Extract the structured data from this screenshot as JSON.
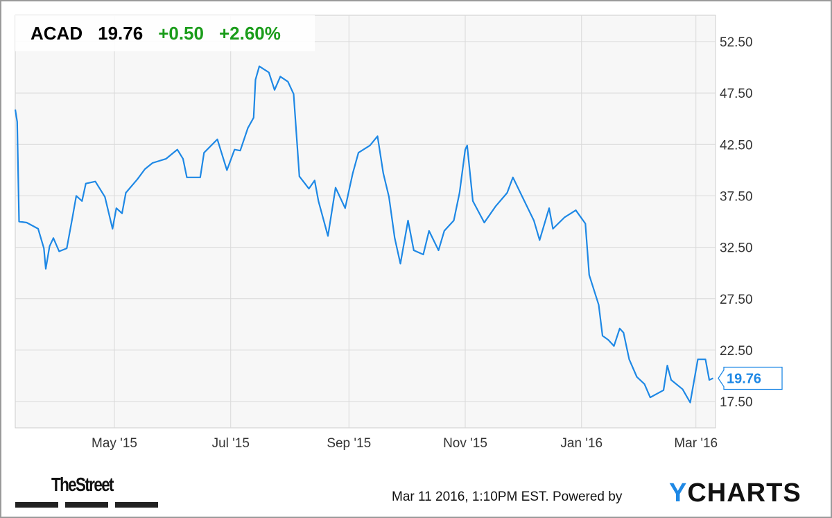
{
  "header": {
    "ticker": "ACAD",
    "price": "19.76",
    "change": "+0.50",
    "change_pct": "+2.60%"
  },
  "footer": {
    "timestamp": "Mar 11 2016, 1:10PM EST.",
    "powered_by": "Powered by",
    "brand_y": "Y",
    "brand_rest": "CHARTS",
    "publisher": "TheStreet"
  },
  "colors": {
    "line": "#1e88e5",
    "positive": "#1a9c1a",
    "grid": "#d9d9d9",
    "plot_bg": "#f7f7f7"
  },
  "chart_data": {
    "type": "line",
    "title": "",
    "xlabel": "",
    "ylabel": "",
    "ylim": [
      15,
      55
    ],
    "y_ticks": [
      "17.50",
      "22.50",
      "27.50",
      "32.50",
      "37.50",
      "42.50",
      "47.50",
      "52.50"
    ],
    "x_ticks": [
      {
        "label": "May '15",
        "date": "2015-05-01"
      },
      {
        "label": "Jul '15",
        "date": "2015-07-01"
      },
      {
        "label": "Sep '15",
        "date": "2015-09-01"
      },
      {
        "label": "Nov '15",
        "date": "2015-11-01"
      },
      {
        "label": "Jan '16",
        "date": "2016-01-01"
      },
      {
        "label": "Mar '16",
        "date": "2016-03-01"
      }
    ],
    "grid": true,
    "last_value_label": "19.76",
    "series": [
      {
        "points": [
          [
            "2015-03-10",
            45.9
          ],
          [
            "2015-03-11",
            44.7
          ],
          [
            "2015-03-12",
            35.0
          ],
          [
            "2015-03-16",
            34.9
          ],
          [
            "2015-03-22",
            34.3
          ],
          [
            "2015-03-25",
            32.4
          ],
          [
            "2015-03-26",
            30.4
          ],
          [
            "2015-03-28",
            32.6
          ],
          [
            "2015-03-30",
            33.4
          ],
          [
            "2015-04-02",
            32.1
          ],
          [
            "2015-04-06",
            32.4
          ],
          [
            "2015-04-09",
            35.4
          ],
          [
            "2015-04-11",
            37.5
          ],
          [
            "2015-04-14",
            37.0
          ],
          [
            "2015-04-16",
            38.7
          ],
          [
            "2015-04-21",
            38.9
          ],
          [
            "2015-04-26",
            37.4
          ],
          [
            "2015-04-30",
            34.3
          ],
          [
            "2015-05-02",
            36.3
          ],
          [
            "2015-05-05",
            35.8
          ],
          [
            "2015-05-07",
            37.8
          ],
          [
            "2015-05-13",
            39.1
          ],
          [
            "2015-05-17",
            40.1
          ],
          [
            "2015-05-21",
            40.7
          ],
          [
            "2015-05-28",
            41.1
          ],
          [
            "2015-06-03",
            42.0
          ],
          [
            "2015-06-06",
            41.1
          ],
          [
            "2015-06-08",
            39.3
          ],
          [
            "2015-06-15",
            39.3
          ],
          [
            "2015-06-17",
            41.7
          ],
          [
            "2015-06-24",
            43.0
          ],
          [
            "2015-06-29",
            40.0
          ],
          [
            "2015-07-03",
            42.0
          ],
          [
            "2015-07-06",
            41.9
          ],
          [
            "2015-07-10",
            44.1
          ],
          [
            "2015-07-13",
            45.1
          ],
          [
            "2015-07-14",
            48.8
          ],
          [
            "2015-07-16",
            50.1
          ],
          [
            "2015-07-21",
            49.5
          ],
          [
            "2015-07-24",
            47.8
          ],
          [
            "2015-07-27",
            49.1
          ],
          [
            "2015-07-31",
            48.6
          ],
          [
            "2015-08-03",
            47.4
          ],
          [
            "2015-08-06",
            39.4
          ],
          [
            "2015-08-11",
            38.2
          ],
          [
            "2015-08-14",
            39.0
          ],
          [
            "2015-08-16",
            37.0
          ],
          [
            "2015-08-21",
            33.6
          ],
          [
            "2015-08-25",
            38.3
          ],
          [
            "2015-08-30",
            36.3
          ],
          [
            "2015-09-03",
            39.7
          ],
          [
            "2015-09-06",
            41.7
          ],
          [
            "2015-09-12",
            42.4
          ],
          [
            "2015-09-16",
            43.3
          ],
          [
            "2015-09-19",
            39.7
          ],
          [
            "2015-09-22",
            37.4
          ],
          [
            "2015-09-25",
            33.4
          ],
          [
            "2015-09-28",
            30.9
          ],
          [
            "2015-10-02",
            35.1
          ],
          [
            "2015-10-05",
            32.2
          ],
          [
            "2015-10-10",
            31.8
          ],
          [
            "2015-10-13",
            34.1
          ],
          [
            "2015-10-18",
            32.2
          ],
          [
            "2015-10-21",
            34.1
          ],
          [
            "2015-10-26",
            35.1
          ],
          [
            "2015-10-29",
            37.8
          ],
          [
            "2015-11-01",
            42.0
          ],
          [
            "2015-11-02",
            42.4
          ],
          [
            "2015-11-05",
            37.0
          ],
          [
            "2015-11-11",
            34.9
          ],
          [
            "2015-11-17",
            36.5
          ],
          [
            "2015-11-23",
            37.8
          ],
          [
            "2015-11-26",
            39.3
          ],
          [
            "2015-12-02",
            37.0
          ],
          [
            "2015-12-07",
            35.1
          ],
          [
            "2015-12-10",
            33.2
          ],
          [
            "2015-12-15",
            36.3
          ],
          [
            "2015-12-17",
            34.3
          ],
          [
            "2015-12-23",
            35.4
          ],
          [
            "2015-12-29",
            36.1
          ],
          [
            "2016-01-03",
            34.8
          ],
          [
            "2016-01-05",
            29.8
          ],
          [
            "2016-01-10",
            26.9
          ],
          [
            "2016-01-12",
            23.9
          ],
          [
            "2016-01-15",
            23.5
          ],
          [
            "2016-01-18",
            22.9
          ],
          [
            "2016-01-21",
            24.6
          ],
          [
            "2016-01-23",
            24.2
          ],
          [
            "2016-01-26",
            21.6
          ],
          [
            "2016-01-30",
            19.9
          ],
          [
            "2016-02-03",
            19.2
          ],
          [
            "2016-02-06",
            17.9
          ],
          [
            "2016-02-13",
            18.6
          ],
          [
            "2016-02-15",
            21.0
          ],
          [
            "2016-02-17",
            19.6
          ],
          [
            "2016-02-23",
            18.7
          ],
          [
            "2016-02-27",
            17.4
          ],
          [
            "2016-03-02",
            21.6
          ],
          [
            "2016-03-06",
            21.6
          ],
          [
            "2016-03-08",
            19.6
          ],
          [
            "2016-03-10",
            19.76
          ]
        ]
      }
    ]
  }
}
